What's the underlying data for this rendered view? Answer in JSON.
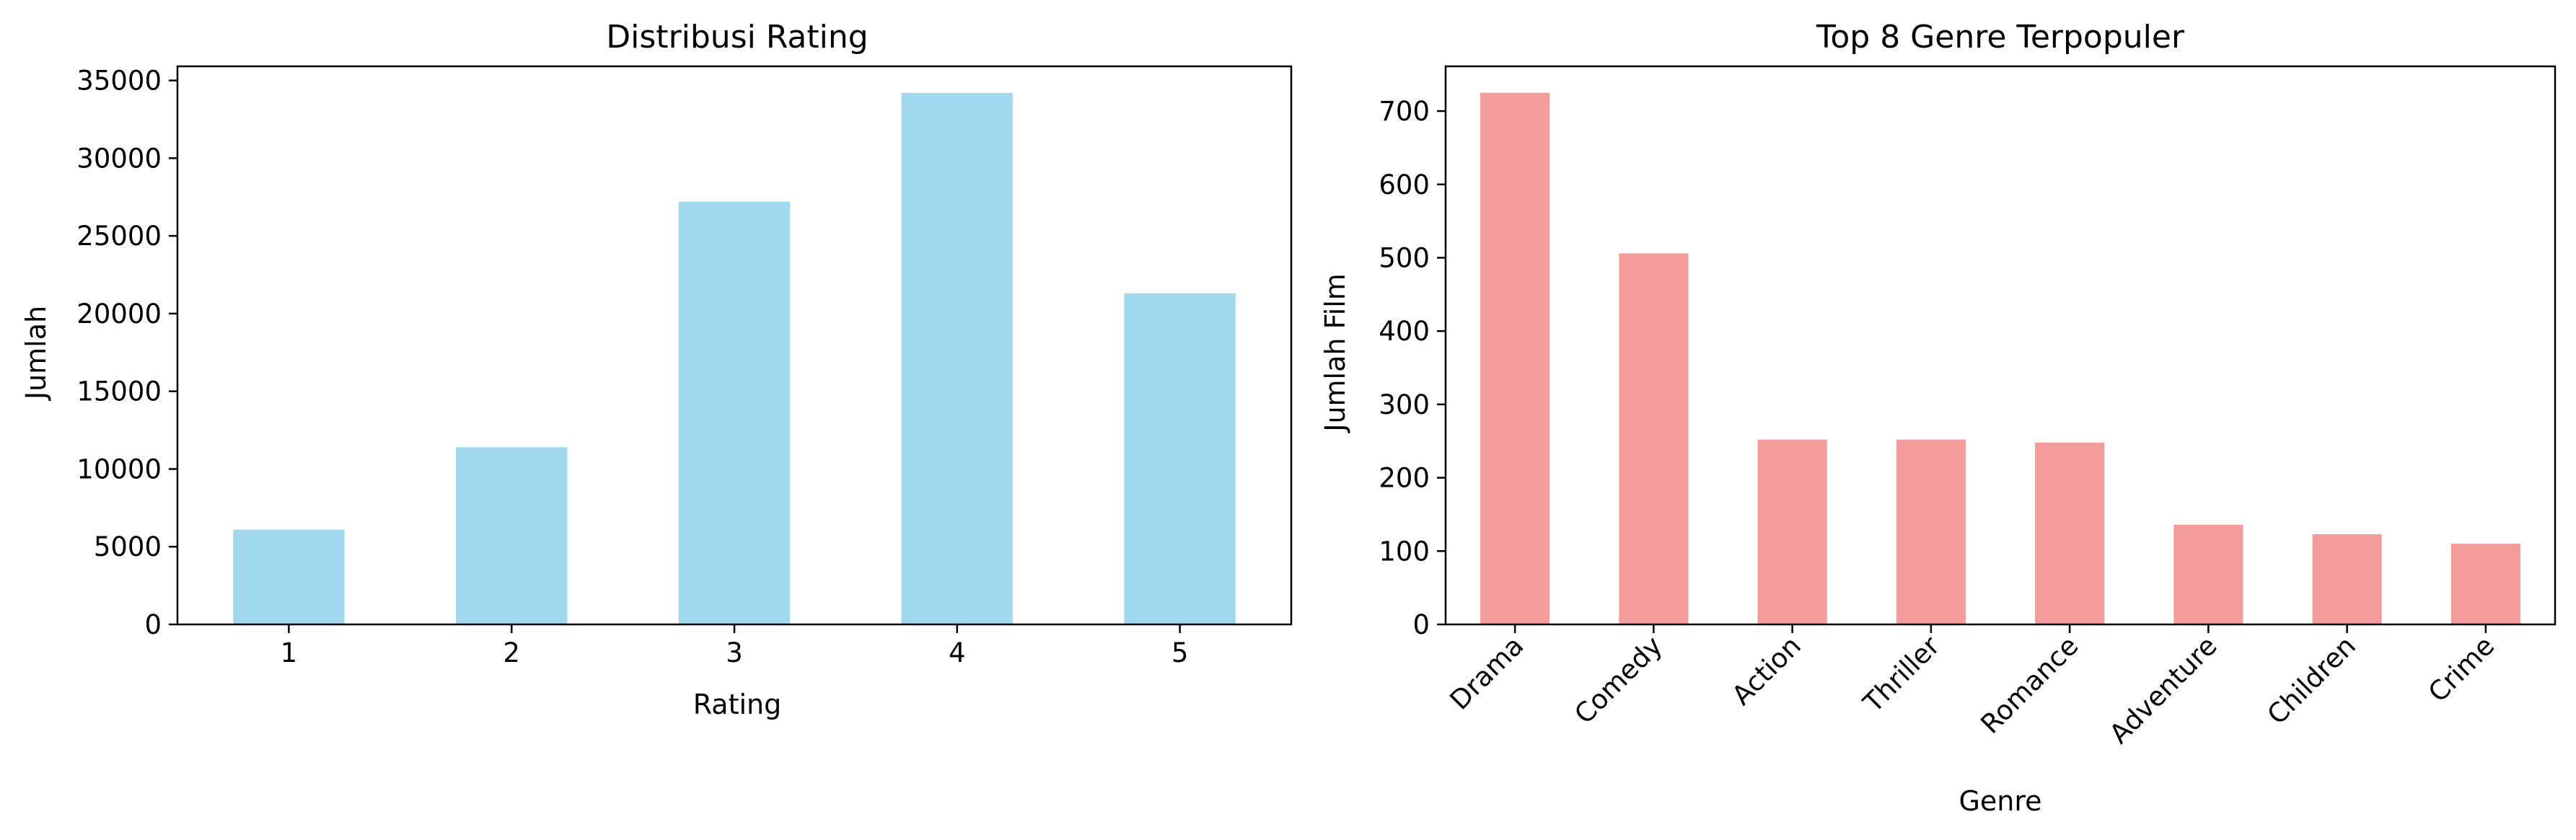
{
  "chart_data": [
    {
      "type": "bar",
      "title": "Distribusi Rating",
      "xlabel": "Rating",
      "ylabel": "Jumlah",
      "categories": [
        "1",
        "2",
        "3",
        "4",
        "5"
      ],
      "values": [
        6100,
        11400,
        27200,
        34200,
        21300
      ],
      "ylim": [
        0,
        35910
      ],
      "yticks": [
        0,
        5000,
        10000,
        15000,
        20000,
        25000,
        30000,
        35000
      ],
      "grid": false,
      "color": "#a1d8ef"
    },
    {
      "type": "bar",
      "title": "Top 8 Genre Terpopuler",
      "xlabel": "Genre",
      "ylabel": "Jumlah Film",
      "categories": [
        "Drama",
        "Comedy",
        "Action",
        "Thriller",
        "Romance",
        "Adventure",
        "Children",
        "Crime"
      ],
      "values": [
        725,
        506,
        252,
        252,
        248,
        136,
        123,
        110
      ],
      "ylim": [
        0,
        761
      ],
      "yticks": [
        0,
        100,
        200,
        300,
        400,
        500,
        600,
        700
      ],
      "grid": false,
      "color": "#f49b9b"
    }
  ]
}
